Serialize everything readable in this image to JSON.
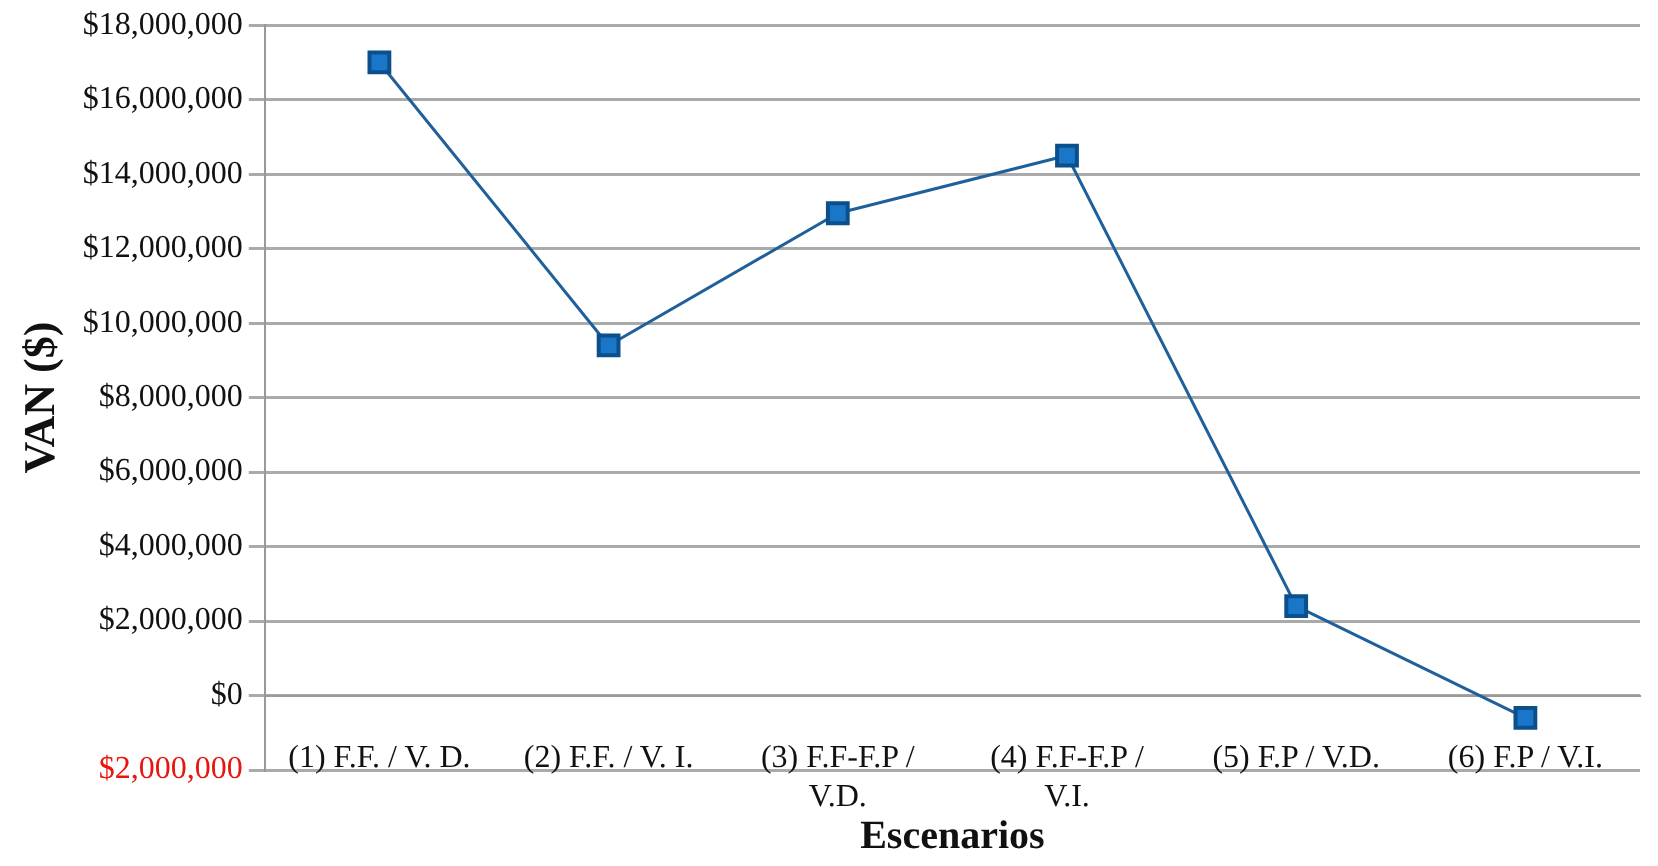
{
  "chart_data": {
    "type": "line",
    "xlabel": "Escenarios",
    "ylabel": "VAN ($)",
    "categories": [
      "(1) F.F. / V. D.",
      "(2) F.F. / V. I.",
      "(3) F.F-F.P / V.D.",
      "(4) F.F-F.P / V.I.",
      "(5) F.P / V.D.",
      "(6) F.P / V.I."
    ],
    "series": [
      {
        "color": "#1f5f9a",
        "values": [
          17000000,
          9400000,
          12950000,
          14500000,
          2400000,
          -600000
        ]
      }
    ],
    "ylim": [
      -2000000,
      18000000
    ],
    "yticks": [
      {
        "value": -2000000,
        "label": "$2,000,000"
      },
      {
        "value": 0,
        "label": "$0"
      },
      {
        "value": 2000000,
        "label": "$2,000,000"
      },
      {
        "value": 4000000,
        "label": "$4,000,000"
      },
      {
        "value": 6000000,
        "label": "$6,000,000"
      },
      {
        "value": 8000000,
        "label": "$8,000,000"
      },
      {
        "value": 10000000,
        "label": "$10,000,000"
      },
      {
        "value": 12000000,
        "label": "$12,000,000"
      },
      {
        "value": 14000000,
        "label": "$14,000,000"
      },
      {
        "value": 16000000,
        "label": "$16,000,000"
      },
      {
        "value": 18000000,
        "label": "$18,000,000"
      }
    ],
    "grid": "y",
    "legend": false,
    "marker": "square",
    "line_style": "solid"
  }
}
